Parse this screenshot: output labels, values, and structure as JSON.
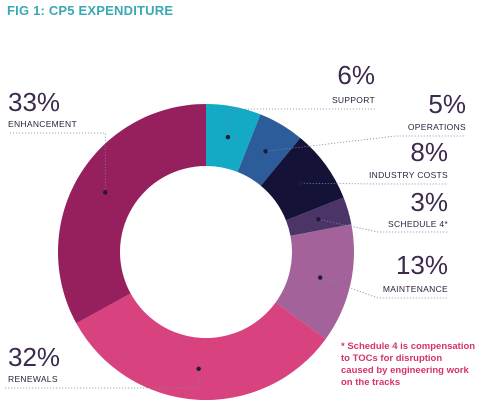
{
  "title": "FIG 1: CP5 EXPENDITURE",
  "footnote": "* Schedule 4 is compensation to TOCs for disruption caused by engineering work on the tracks",
  "chart_data": {
    "type": "pie",
    "donut": true,
    "title": "FIG 1: CP5 EXPENDITURE",
    "slices": [
      {
        "label": "SUPPORT",
        "display": "6%",
        "value": 6,
        "color": "#14a9c4"
      },
      {
        "label": "OPERATIONS",
        "display": "5%",
        "value": 5,
        "color": "#2c5c9a"
      },
      {
        "label": "INDUSTRY COSTS",
        "display": "8%",
        "value": 8,
        "color": "#141236"
      },
      {
        "label": "SCHEDULE 4*",
        "display": "3%",
        "value": 3,
        "color": "#4a3468"
      },
      {
        "label": "MAINTENANCE",
        "display": "13%",
        "value": 13,
        "color": "#a4629b"
      },
      {
        "label": "RENEWALS",
        "display": "32%",
        "value": 32,
        "color": "#d8427f"
      },
      {
        "label": "ENHANCEMENT",
        "display": "33%",
        "value": 33,
        "color": "#961f5e"
      }
    ]
  }
}
